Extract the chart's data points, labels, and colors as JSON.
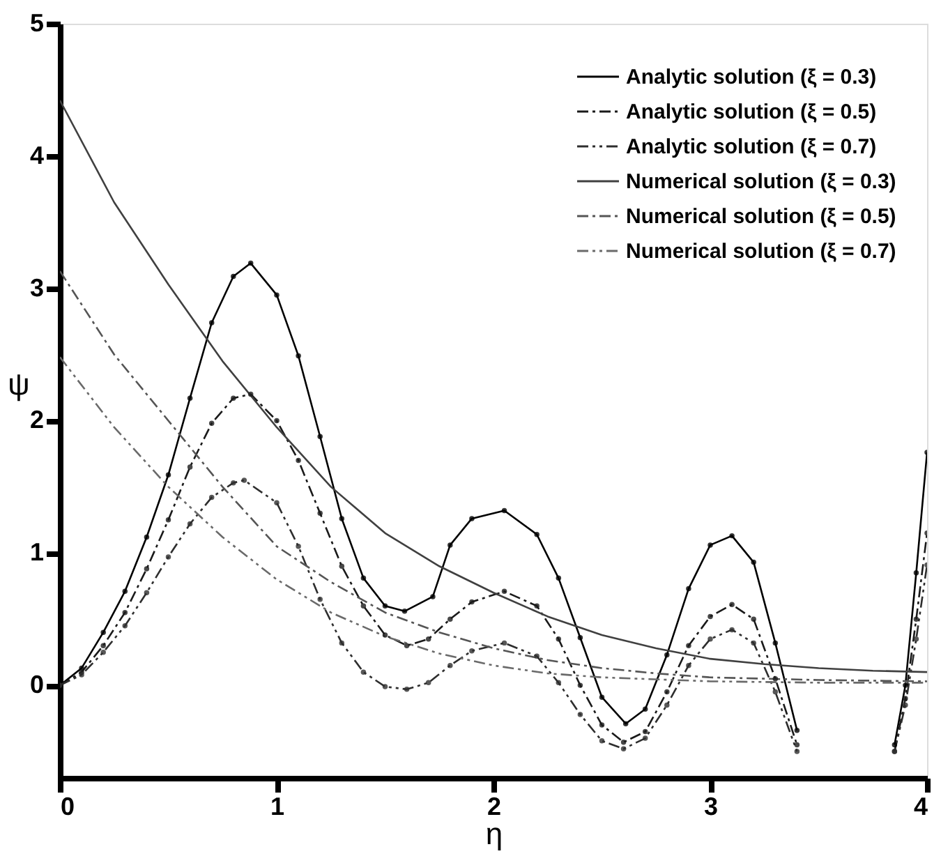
{
  "chart_data": {
    "type": "line",
    "xlabel": "η",
    "ylabel": "ψ",
    "xlim": [
      0,
      4
    ],
    "ylim": [
      -0.7,
      5
    ],
    "xticks": [
      0,
      1,
      2,
      3,
      4
    ],
    "yticks": [
      0,
      1,
      2,
      3,
      4,
      5
    ],
    "grid": false,
    "legend": "top right",
    "series": [
      {
        "name": "Analytic solution (ξ = 0.3)",
        "color": "#000000",
        "line_style": "solid",
        "marker": "circle",
        "x": [
          0,
          0.1,
          0.2,
          0.3,
          0.4,
          0.5,
          0.6,
          0.7,
          0.8,
          0.88,
          1.0,
          1.1,
          1.2,
          1.3,
          1.4,
          1.5,
          1.59,
          1.72,
          1.8,
          1.9,
          2.05,
          2.2,
          2.3,
          2.4,
          2.5,
          2.61,
          2.7,
          2.8,
          2.9,
          3.0,
          3.1,
          3.2,
          3.3,
          3.4,
          3.47,
          3.6,
          3.78,
          3.85,
          3.9,
          3.95,
          4.0
        ],
        "values": [
          0,
          0.13,
          0.4,
          0.71,
          1.12,
          1.59,
          2.17,
          2.74,
          3.09,
          3.19,
          2.95,
          2.49,
          1.88,
          1.26,
          0.81,
          0.6,
          0.56,
          0.67,
          1.06,
          1.26,
          1.32,
          1.14,
          0.81,
          0.36,
          -0.09,
          -0.29,
          -0.18,
          0.23,
          0.73,
          1.06,
          1.13,
          0.93,
          0.32,
          -0.34,
          null,
          null,
          null,
          -0.45,
          0.0,
          0.85,
          1.76
        ]
      },
      {
        "name": "Analytic solution (ξ = 0.5)",
        "color": "#1a1a1a",
        "line_style": "dashed",
        "marker": "circle",
        "x": [
          0,
          0.1,
          0.2,
          0.3,
          0.4,
          0.5,
          0.6,
          0.7,
          0.8,
          0.88,
          1.0,
          1.1,
          1.2,
          1.3,
          1.4,
          1.5,
          1.6,
          1.7,
          1.8,
          1.9,
          2.05,
          2.2,
          2.3,
          2.4,
          2.5,
          2.6,
          2.7,
          2.8,
          2.9,
          3.0,
          3.1,
          3.2,
          3.3,
          3.4,
          3.45,
          3.6,
          3.77,
          3.85,
          3.9,
          3.95,
          4.0
        ],
        "values": [
          0,
          0.1,
          0.3,
          0.55,
          0.88,
          1.25,
          1.65,
          1.98,
          2.17,
          2.2,
          2.0,
          1.7,
          1.3,
          0.9,
          0.6,
          0.38,
          0.3,
          0.35,
          0.5,
          0.63,
          0.71,
          0.6,
          0.35,
          0.0,
          -0.3,
          -0.43,
          -0.35,
          -0.05,
          0.3,
          0.52,
          0.61,
          0.5,
          0.05,
          -0.45,
          null,
          null,
          null,
          -0.5,
          -0.1,
          0.5,
          1.15
        ]
      },
      {
        "name": "Analytic solution (ξ = 0.7)",
        "color": "#2e2e2e",
        "line_style": "dotted",
        "marker": "circle",
        "x": [
          0,
          0.1,
          0.2,
          0.3,
          0.4,
          0.5,
          0.6,
          0.7,
          0.8,
          0.85,
          1.0,
          1.1,
          1.2,
          1.3,
          1.4,
          1.5,
          1.6,
          1.7,
          1.8,
          1.9,
          2.05,
          2.2,
          2.3,
          2.4,
          2.5,
          2.6,
          2.7,
          2.8,
          2.9,
          3.0,
          3.1,
          3.2,
          3.3,
          3.4,
          3.44,
          3.6,
          3.77,
          3.85,
          3.9,
          3.95,
          4.0
        ],
        "values": [
          0,
          0.08,
          0.25,
          0.45,
          0.7,
          0.97,
          1.22,
          1.42,
          1.53,
          1.55,
          1.38,
          1.05,
          0.65,
          0.32,
          0.1,
          -0.01,
          -0.03,
          0.02,
          0.15,
          0.26,
          0.32,
          0.22,
          0.02,
          -0.22,
          -0.42,
          -0.48,
          -0.4,
          -0.15,
          0.15,
          0.35,
          0.42,
          0.32,
          -0.05,
          -0.5,
          null,
          null,
          null,
          -0.5,
          -0.15,
          0.35,
          0.91
        ]
      },
      {
        "name": "Numerical solution (ξ = 0.3)",
        "color": "#404040",
        "line_style": "solid",
        "marker": "none",
        "x": [
          0,
          0.25,
          0.5,
          0.75,
          1.0,
          1.25,
          1.5,
          1.75,
          2.0,
          2.25,
          2.5,
          2.75,
          3.0,
          3.25,
          3.5,
          3.75,
          4.0
        ],
        "values": [
          4.42,
          3.65,
          3.03,
          2.45,
          1.95,
          1.5,
          1.15,
          0.9,
          0.7,
          0.52,
          0.38,
          0.28,
          0.2,
          0.16,
          0.13,
          0.11,
          0.1
        ]
      },
      {
        "name": "Numerical solution (ξ = 0.5)",
        "color": "#555555",
        "line_style": "dashed",
        "marker": "none",
        "x": [
          0,
          0.25,
          0.5,
          0.75,
          1.0,
          1.25,
          1.5,
          1.75,
          2.0,
          2.25,
          2.5,
          2.75,
          3.0,
          3.5,
          4.0
        ],
        "values": [
          3.13,
          2.5,
          2.0,
          1.5,
          1.05,
          0.78,
          0.55,
          0.4,
          0.28,
          0.19,
          0.13,
          0.09,
          0.06,
          0.04,
          0.03
        ]
      },
      {
        "name": "Numerical solution (ξ = 0.7)",
        "color": "#6a6a6a",
        "line_style": "dotted",
        "marker": "none",
        "x": [
          0,
          0.25,
          0.5,
          0.75,
          1.0,
          1.25,
          1.5,
          1.75,
          2.0,
          2.25,
          2.5,
          3.0,
          3.5,
          4.0
        ],
        "values": [
          2.48,
          1.95,
          1.5,
          1.12,
          0.8,
          0.55,
          0.37,
          0.24,
          0.15,
          0.09,
          0.06,
          0.03,
          0.02,
          0.02
        ]
      }
    ]
  }
}
